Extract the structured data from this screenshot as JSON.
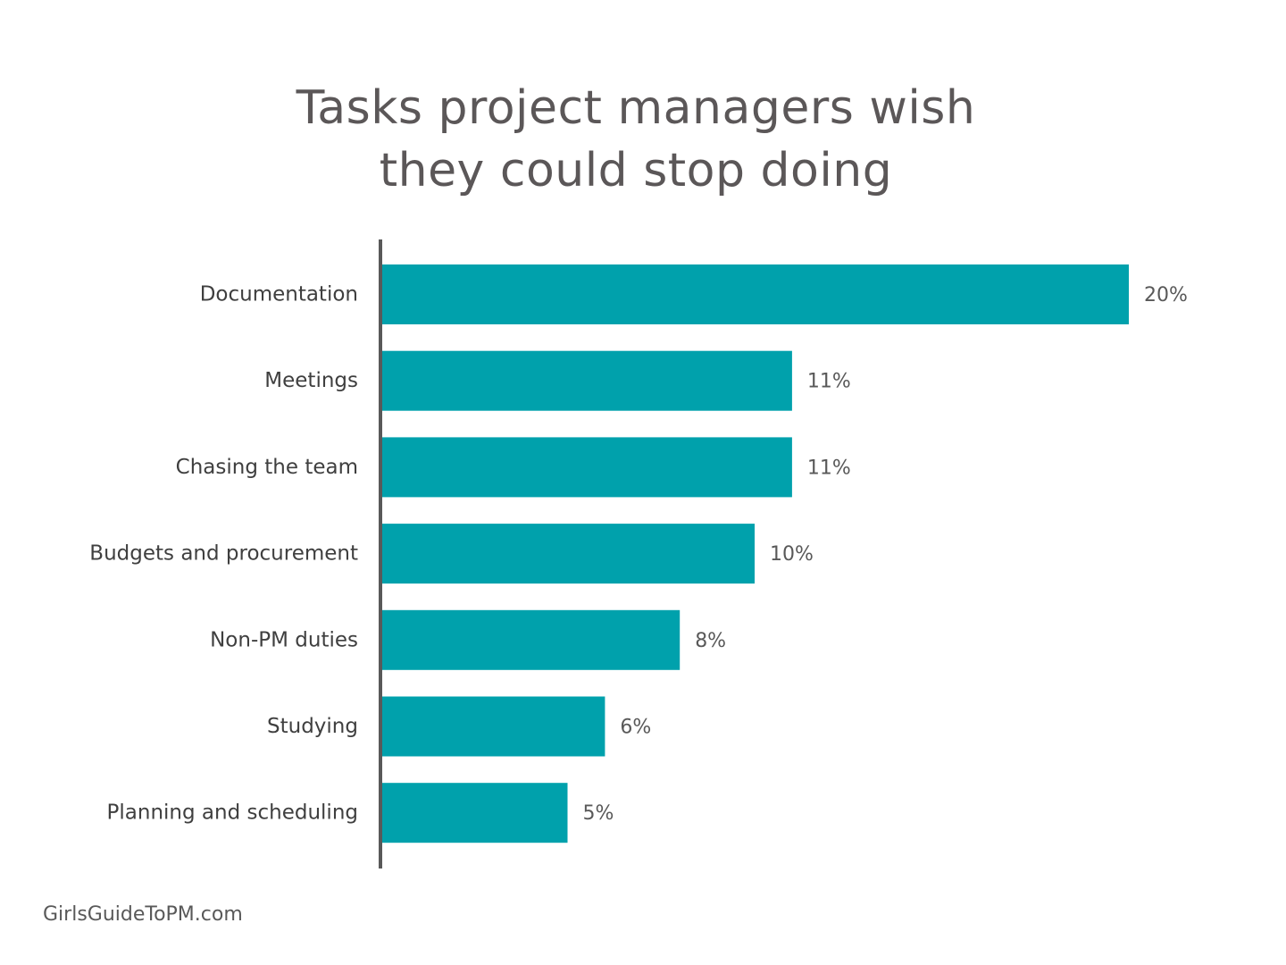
{
  "title_lines": [
    "Tasks project managers wish",
    "they could stop doing"
  ],
  "source": "GirlsGuideToPM.com",
  "colors": {
    "bar": "#00A1AC",
    "axis": "#595959",
    "title": "#5b5758",
    "text": "#3f3f3f"
  },
  "chart_data": {
    "type": "bar",
    "orientation": "horizontal",
    "categories": [
      "Documentation",
      "Meetings",
      "Chasing the team",
      "Budgets and procurement",
      "Non-PM duties",
      "Studying",
      "Planning and scheduling"
    ],
    "values": [
      20,
      11,
      11,
      10,
      8,
      6,
      5
    ],
    "value_labels": [
      "20%",
      "11%",
      "11%",
      "10%",
      "8%",
      "6%",
      "5%"
    ],
    "unit": "%",
    "xlim": [
      0,
      20
    ],
    "grid": false,
    "legend": "none"
  }
}
